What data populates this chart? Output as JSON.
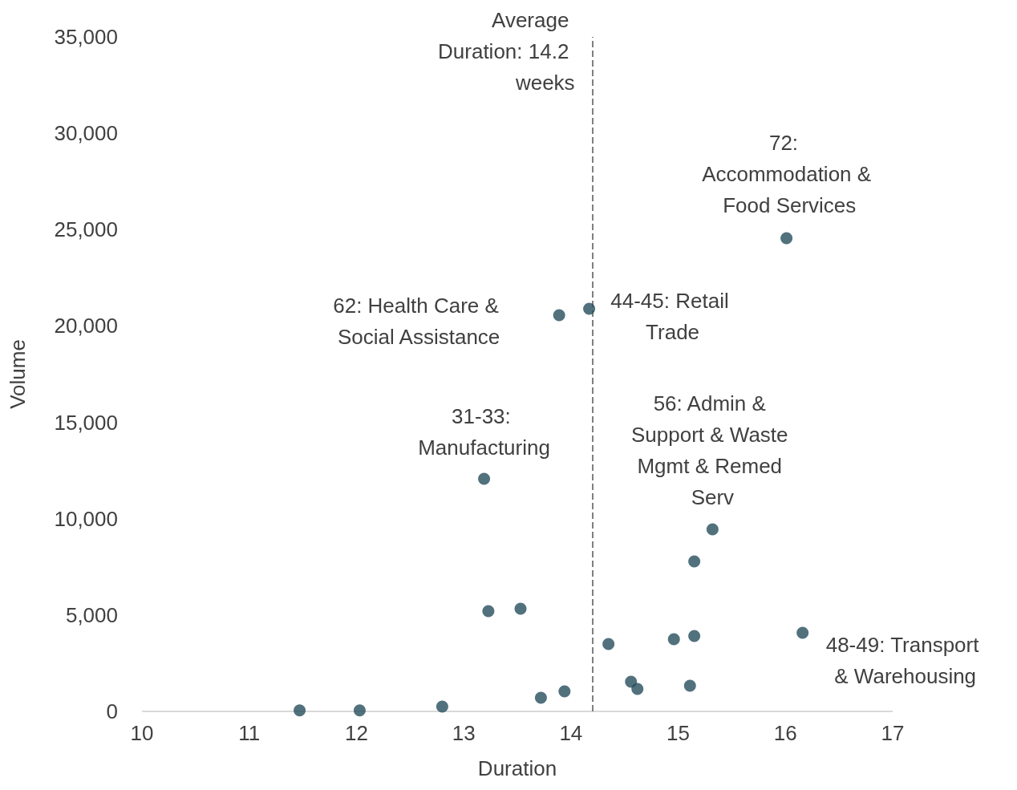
{
  "chart_data": {
    "type": "scatter",
    "xlabel": "Duration",
    "ylabel": "Volume",
    "x": [
      11.47,
      12.03,
      12.8,
      13.19,
      13.23,
      13.53,
      13.72,
      13.89,
      13.94,
      14.17,
      14.35,
      14.56,
      14.62,
      14.96,
      15.11,
      15.15,
      15.15,
      15.32,
      16.01,
      16.16
    ],
    "values": [
      50,
      50,
      250,
      12070,
      5200,
      5330,
      710,
      20560,
      1040,
      20890,
      3500,
      1540,
      1170,
      3750,
      1330,
      3910,
      7780,
      9450,
      24550,
      4080
    ],
    "color": "#264d5c",
    "marker": "circle",
    "xlim": [
      10,
      17
    ],
    "xticks": [
      10,
      11,
      12,
      13,
      14,
      15,
      16,
      17
    ],
    "ylim": [
      0,
      35000
    ],
    "yticks": [
      0,
      {
        "value": 5000,
        "label": "5,000"
      },
      {
        "value": 10000,
        "label": "10,000"
      },
      {
        "value": 15000,
        "label": "15,000"
      },
      {
        "value": 20000,
        "label": "20,000"
      },
      {
        "value": 25000,
        "label": "25,000"
      },
      {
        "value": 30000,
        "label": "30,000"
      },
      {
        "value": 35000,
        "label": "35,000"
      }
    ],
    "grid": false,
    "ref_lines": [
      {
        "axis": "x",
        "value": 14.2,
        "label": "Average Duration: 14.2 weeks",
        "color": "#7f7f7f",
        "line_style": "dashed"
      }
    ],
    "annotations": [
      {
        "text": "72: Accommodation & Food Services",
        "x": 16.01,
        "y": 24550
      },
      {
        "text": "44-45: Retail Trade",
        "x": 14.17,
        "y": 20890
      },
      {
        "text": "62: Health Care & Social Assistance",
        "x": 13.89,
        "y": 20560
      },
      {
        "text": "31-33: Manufacturing",
        "x": 13.19,
        "y": 12070
      },
      {
        "text": "56: Admin & Support & Waste Mgmt & Remed Serv",
        "x": 15.32,
        "y": 9450
      },
      {
        "text": "48-49: Transport & Warehousing",
        "x": 16.16,
        "y": 4080
      }
    ]
  }
}
